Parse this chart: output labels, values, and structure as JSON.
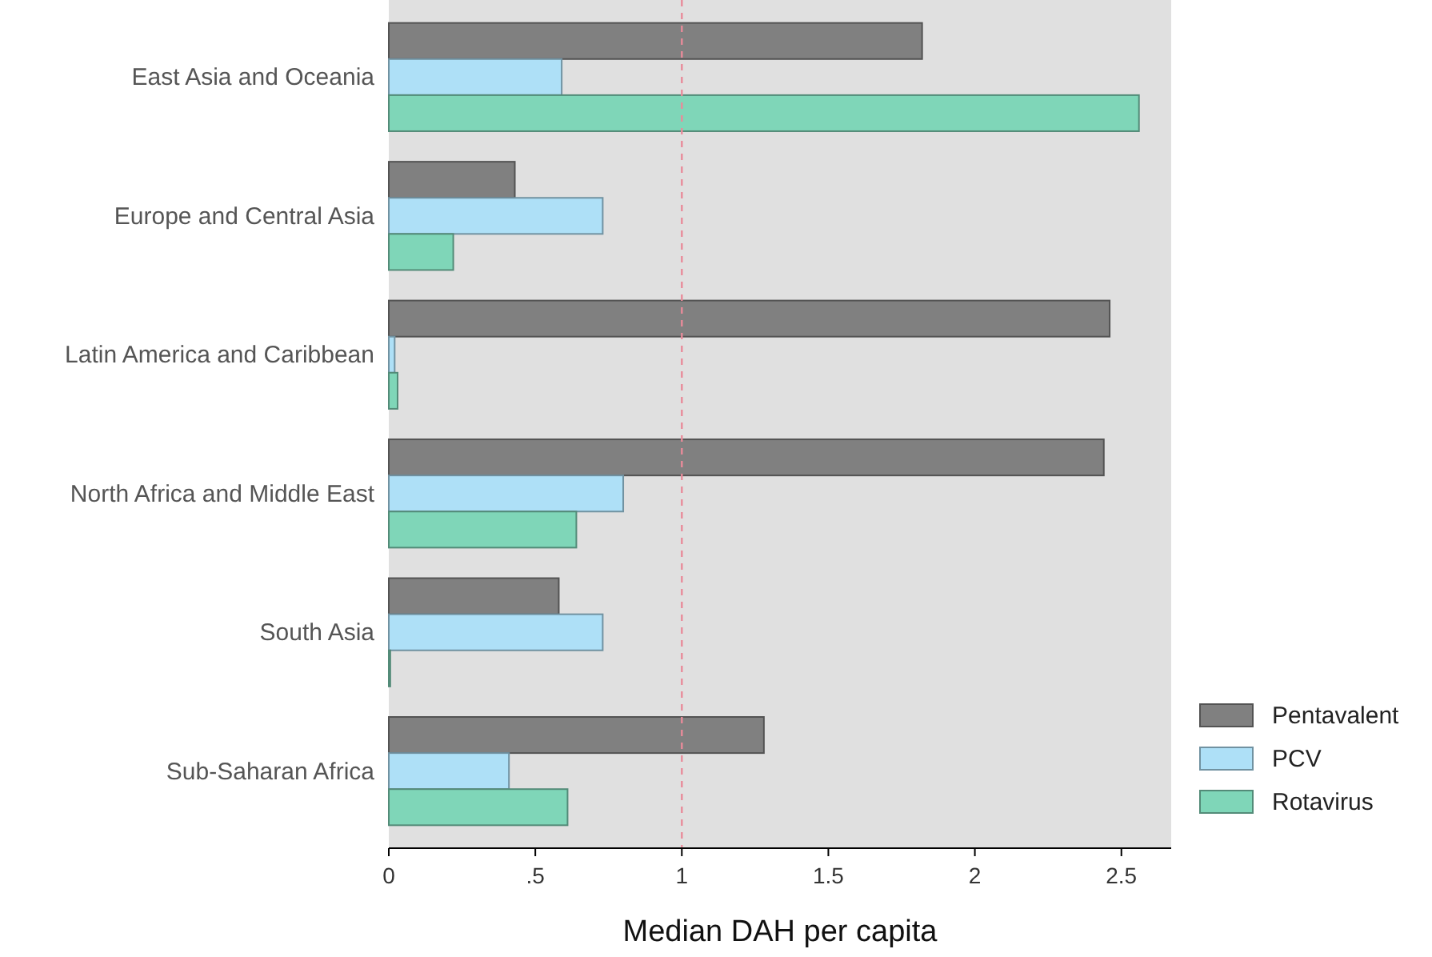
{
  "chart_data": {
    "type": "bar",
    "orientation": "horizontal",
    "xlabel": "Median DAH per capita",
    "categories": [
      "East Asia and Oceania",
      "Europe and Central Asia",
      "Latin America and Caribbean",
      "North Africa and Middle East",
      "South Asia",
      "Sub-Saharan Africa"
    ],
    "series": [
      {
        "name": "Pentavalent",
        "color": "#808080",
        "values": [
          1.82,
          0.43,
          2.46,
          2.44,
          0.58,
          1.28
        ]
      },
      {
        "name": "PCV",
        "color": "#aee0f7",
        "values": [
          0.59,
          0.73,
          0.02,
          0.8,
          0.73,
          0.41
        ]
      },
      {
        "name": "Rotavirus",
        "color": "#7fd6b8",
        "values": [
          2.56,
          0.22,
          0.03,
          0.64,
          0.005,
          0.61
        ]
      }
    ],
    "xlim": [
      0,
      2.67
    ],
    "xticks": [
      0,
      {
        "value": 0.5,
        "label": ".5"
      },
      1,
      1.5,
      2,
      2.5
    ],
    "ref_lines": [
      {
        "axis": "x",
        "value": 1,
        "color": "#e88b9a",
        "line_style": "dashed"
      }
    ],
    "grid": false,
    "legend": "bottom right"
  }
}
